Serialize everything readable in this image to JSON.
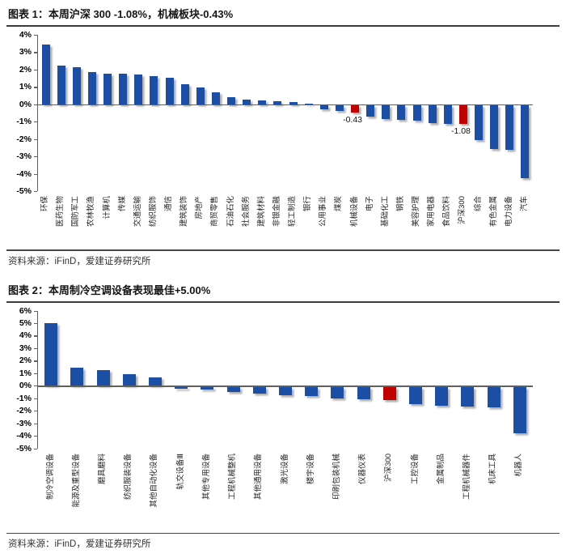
{
  "colors": {
    "bar_blue": "#1C4FA3",
    "bar_red": "#C00000",
    "axis_gray": "#606060",
    "rule_dark": "#3D3D3D"
  },
  "figure1": {
    "title": "图表 1：本周沪深 300 -1.08%，机械板块-0.43%",
    "source": "资料来源：iFinD，爱建证券研究所"
  },
  "figure2": {
    "title": "图表 2：本周制冷空调设备表现最佳+5.00%",
    "source": "资料来源：iFinD，爱建证券研究所"
  },
  "chart_data": [
    {
      "type": "bar",
      "title": "本周沪深 300 -1.08%，机械板块-0.43%",
      "xlabel": "",
      "ylabel": "",
      "ylim": [
        -5,
        4
      ],
      "ytick_step": 1,
      "ytick_suffix": "%",
      "grid": false,
      "legend": "none",
      "categories": [
        "环保",
        "医药生物",
        "国防军工",
        "农林牧渔",
        "计算机",
        "传媒",
        "交通运输",
        "纺织服饰",
        "通信",
        "建筑装饰",
        "房地产",
        "商贸零售",
        "石油石化",
        "社会服务",
        "建筑材料",
        "非银金融",
        "轻工制造",
        "银行",
        "公用事业",
        "煤炭",
        "机械设备",
        "电子",
        "基础化工",
        "钢铁",
        "美容护理",
        "家用电器",
        "食品饮料",
        "沪深300",
        "综合",
        "有色金属",
        "电力设备",
        "汽车"
      ],
      "values": [
        3.45,
        2.25,
        2.15,
        1.85,
        1.78,
        1.75,
        1.72,
        1.6,
        1.52,
        1.15,
        0.95,
        0.7,
        0.42,
        0.25,
        0.22,
        0.18,
        0.15,
        0.05,
        -0.2,
        -0.3,
        -0.43,
        -0.65,
        -0.78,
        -0.82,
        -0.86,
        -1.0,
        -1.05,
        -1.08,
        -2.0,
        -2.5,
        -2.55,
        -4.2
      ],
      "red_indices": [
        20,
        27
      ],
      "data_labels": [
        {
          "index": 20,
          "text": "-0.43"
        },
        {
          "index": 27,
          "text": "-1.08"
        }
      ]
    },
    {
      "type": "bar",
      "title": "本周制冷空调设备表现最佳+5.00%",
      "xlabel": "",
      "ylabel": "",
      "ylim": [
        -5,
        6
      ],
      "ytick_step": 1,
      "ytick_suffix": "%",
      "grid": false,
      "legend": "none",
      "categories": [
        "制冷空调设备",
        "能源及重型设备",
        "磨具磨料",
        "纺织服装设备",
        "其他自动化设备",
        "轨交设备Ⅲ",
        "其他专用设备",
        "工程机械整机",
        "其他通用设备",
        "激光设备",
        "楼宇设备",
        "印刷包装机械",
        "仪器仪表",
        "沪深300",
        "工控设备",
        "金属制品",
        "工程机械器件",
        "机床工具",
        "机器人"
      ],
      "values": [
        5.0,
        1.45,
        1.25,
        0.95,
        0.65,
        -0.12,
        -0.2,
        -0.38,
        -0.52,
        -0.65,
        -0.7,
        -0.95,
        -1.0,
        -1.08,
        -1.35,
        -1.5,
        -1.6,
        -1.65,
        -3.7
      ],
      "red_indices": [
        13
      ],
      "data_labels": []
    }
  ]
}
